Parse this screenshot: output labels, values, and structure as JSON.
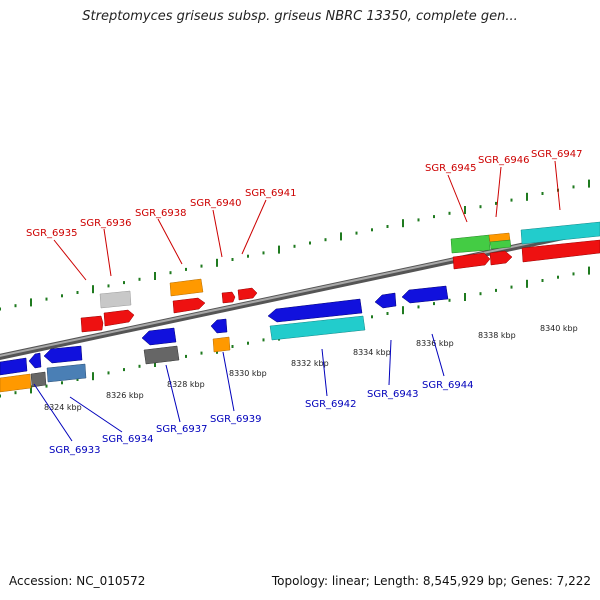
{
  "header": {
    "title": "Streptomyces griseus subsp. griseus NBRC 13350, complete gen..."
  },
  "footer": {
    "accession": "Accession: NC_010572",
    "summary": "Topology: linear; Length: 8,545,929 bp; Genes: 7,222"
  },
  "colors": {
    "backbone": "#7f7f7f",
    "tick": "#1f7a1f",
    "label_forward": "#cc0000",
    "label_reverse": "#0000bb"
  },
  "scale_labels": [
    "8324 kbp",
    "8326 kbp",
    "8328 kbp",
    "8330 kbp",
    "8332 kbp",
    "8334 kbp",
    "8336 kbp",
    "8338 kbp",
    "8340 kbp"
  ],
  "genes_forward": [
    {
      "id": "SGR_6935",
      "color": "#ee0000"
    },
    {
      "id": "SGR_6936",
      "color": "#ee0000"
    },
    {
      "id": "SGR_6938",
      "color": "#ee0000"
    },
    {
      "id": "SGR_6940",
      "color": "#ee0000"
    },
    {
      "id": "SGR_6941",
      "color": "#ee0000"
    },
    {
      "id": "SGR_6945",
      "color": "#ee0000"
    },
    {
      "id": "SGR_6946",
      "color": "#ee0000"
    },
    {
      "id": "SGR_6947",
      "color": "#ee0000"
    }
  ],
  "genes_reverse": [
    {
      "id": "SGR_6933",
      "color": "#1111dd"
    },
    {
      "id": "SGR_6934",
      "color": "#1111dd"
    },
    {
      "id": "SGR_6937",
      "color": "#1111dd"
    },
    {
      "id": "SGR_6939",
      "color": "#1111dd"
    },
    {
      "id": "SGR_6942",
      "color": "#1111dd"
    },
    {
      "id": "SGR_6943",
      "color": "#1111dd"
    },
    {
      "id": "SGR_6944",
      "color": "#1111dd"
    }
  ]
}
